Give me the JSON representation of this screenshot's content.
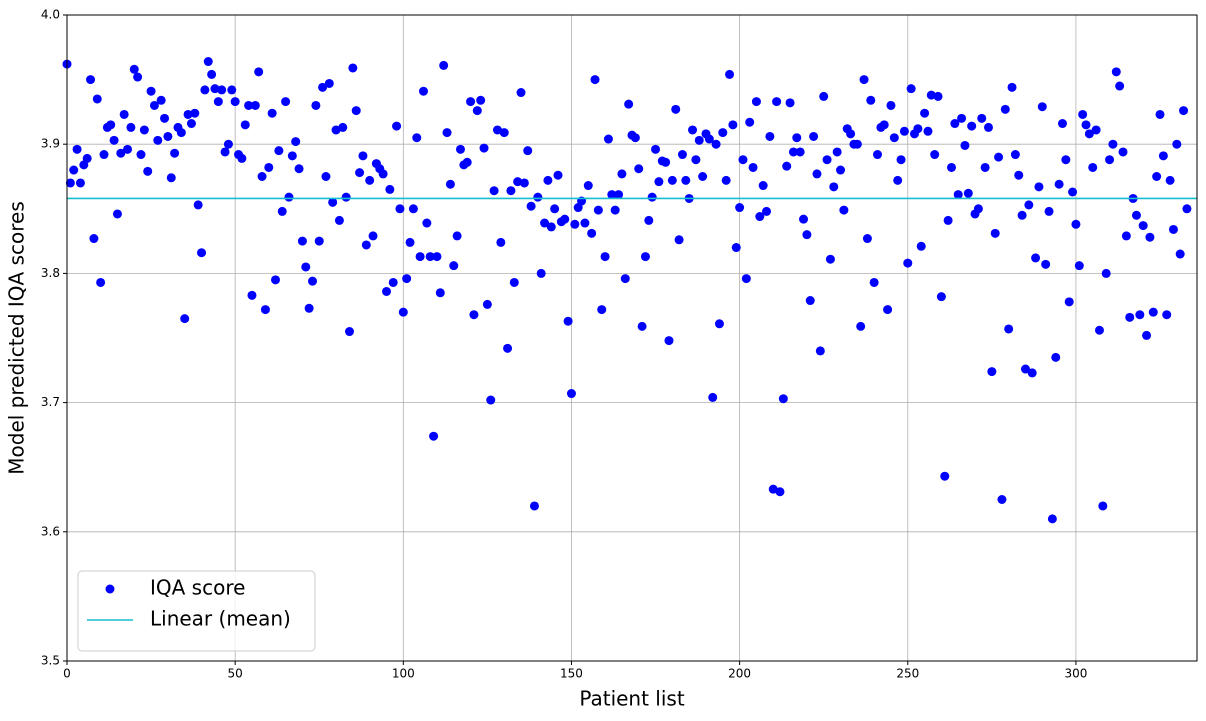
{
  "chart_data": {
    "type": "scatter",
    "xlabel": "Patient list",
    "ylabel": "Model predicted IQA scores",
    "xlim": [
      0,
      336
    ],
    "ylim": [
      3.5,
      4.0
    ],
    "xticks": [
      0,
      50,
      100,
      150,
      200,
      250,
      300
    ],
    "yticks": [
      3.5,
      3.6,
      3.7,
      3.8,
      3.9,
      {
        "value": 4,
        "label": "4.0"
      }
    ],
    "grid": true,
    "legend": "lower left",
    "series": [
      {
        "name": "IQA score",
        "color": "#0000ff",
        "type": "scatter",
        "x": [
          0,
          1,
          2,
          3,
          4,
          5,
          6,
          7,
          8,
          9,
          10,
          11,
          12,
          13,
          14,
          15,
          16,
          17,
          18,
          19,
          20,
          21,
          22,
          23,
          24,
          25,
          26,
          27,
          28,
          29,
          30,
          31,
          32,
          33,
          34,
          35,
          36,
          37,
          38,
          39,
          40,
          41,
          42,
          43,
          44,
          45,
          46,
          47,
          48,
          49,
          50,
          51,
          52,
          53,
          54,
          55,
          56,
          57,
          58,
          59,
          60,
          61,
          62,
          63,
          64,
          65,
          66,
          67,
          68,
          69,
          70,
          71,
          72,
          73,
          74,
          75,
          76,
          77,
          78,
          79,
          80,
          81,
          82,
          83,
          84,
          85,
          86,
          87,
          88,
          89,
          90,
          91,
          92,
          93,
          94,
          95,
          96,
          97,
          98,
          99,
          100,
          101,
          102,
          103,
          104,
          105,
          106,
          107,
          108,
          109,
          110,
          111,
          112,
          113,
          114,
          115,
          116,
          117,
          118,
          119,
          120,
          121,
          122,
          123,
          124,
          125,
          126,
          127,
          128,
          129,
          130,
          131,
          132,
          133,
          134,
          135,
          136,
          137,
          138,
          139,
          140,
          141,
          142,
          143,
          144,
          145,
          146,
          147,
          148,
          149,
          150,
          151,
          152,
          153,
          154,
          155,
          156,
          157,
          158,
          159,
          160,
          161,
          162,
          163,
          164,
          165,
          166,
          167,
          168,
          169,
          170,
          171,
          172,
          173,
          174,
          175,
          176,
          177,
          178,
          179,
          180,
          181,
          182,
          183,
          184,
          185,
          186,
          187,
          188,
          189,
          190,
          191,
          192,
          193,
          194,
          195,
          196,
          197,
          198,
          199,
          200,
          201,
          202,
          203,
          204,
          205,
          206,
          207,
          208,
          209,
          210,
          211,
          212,
          213,
          214,
          215,
          216,
          217,
          218,
          219,
          220,
          221,
          222,
          223,
          224,
          225,
          226,
          227,
          228,
          229,
          230,
          231,
          232,
          233,
          234,
          235,
          236,
          237,
          238,
          239,
          240,
          241,
          242,
          243,
          244,
          245,
          246,
          247,
          248,
          249,
          250,
          251,
          252,
          253,
          254,
          255,
          256,
          257,
          258,
          259,
          260,
          261,
          262,
          263,
          264,
          265,
          266,
          267,
          268,
          269,
          270,
          271,
          272,
          273,
          274,
          275,
          276,
          277,
          278,
          279,
          280,
          281,
          282,
          283,
          284,
          285,
          286,
          287,
          288,
          289,
          290,
          291,
          292,
          293,
          294,
          295,
          296,
          297,
          298,
          299,
          300,
          301,
          302,
          303,
          304,
          305,
          306,
          307,
          308,
          309,
          310,
          311,
          312,
          313,
          314,
          315,
          316,
          317,
          318,
          319,
          320,
          321,
          322,
          323,
          324,
          325,
          326,
          327,
          328,
          329,
          330,
          331,
          332,
          333
        ],
        "values": [
          3.962,
          3.87,
          3.88,
          3.896,
          3.87,
          3.884,
          3.889,
          3.95,
          3.827,
          3.935,
          3.793,
          3.892,
          3.913,
          3.915,
          3.903,
          3.846,
          3.893,
          3.923,
          3.896,
          3.913,
          3.958,
          3.952,
          3.892,
          3.911,
          3.879,
          3.941,
          3.93,
          3.903,
          3.934,
          3.92,
          3.906,
          3.874,
          3.893,
          3.913,
          3.909,
          3.765,
          3.923,
          3.916,
          3.924,
          3.853,
          3.816,
          3.942,
          3.964,
          3.954,
          3.943,
          3.933,
          3.942,
          3.894,
          3.9,
          3.942,
          3.933,
          3.892,
          3.889,
          3.915,
          3.93,
          3.783,
          3.93,
          3.956,
          3.875,
          3.772,
          3.882,
          3.924,
          3.795,
          3.895,
          3.848,
          3.933,
          3.859,
          3.891,
          3.902,
          3.881,
          3.825,
          3.805,
          3.773,
          3.794,
          3.93,
          3.825,
          3.944,
          3.875,
          3.947,
          3.855,
          3.911,
          3.841,
          3.913,
          3.859,
          3.755,
          3.959,
          3.926,
          3.878,
          3.891,
          3.822,
          3.872,
          3.829,
          3.885,
          3.881,
          3.877,
          3.786,
          3.865,
          3.793,
          3.914,
          3.85,
          3.77,
          3.796,
          3.824,
          3.85,
          3.905,
          3.813,
          3.941,
          3.839,
          3.813,
          3.674,
          3.813,
          3.785,
          3.961,
          3.909,
          3.869,
          3.806,
          3.829,
          3.896,
          3.884,
          3.886,
          3.933,
          3.768,
          3.926,
          3.934,
          3.897,
          3.776,
          3.702,
          3.864,
          3.911,
          3.824,
          3.909,
          3.742,
          3.864,
          3.793,
          3.871,
          3.94,
          3.87,
          3.895,
          3.852,
          3.62,
          3.859,
          3.8,
          3.839,
          3.872,
          3.836,
          3.85,
          3.876,
          3.84,
          3.842,
          3.763,
          3.707,
          3.838,
          3.851,
          3.856,
          3.839,
          3.868,
          3.831,
          3.95,
          3.849,
          3.772,
          3.813,
          3.904,
          3.861,
          3.849,
          3.861,
          3.877,
          3.796,
          3.931,
          3.907,
          3.905,
          3.881,
          3.759,
          3.813,
          3.841,
          3.859,
          3.896,
          3.871,
          3.887,
          3.886,
          3.748,
          3.872,
          3.927,
          3.826,
          3.892,
          3.872,
          3.858,
          3.911,
          3.888,
          3.903,
          3.875,
          3.908,
          3.904,
          3.704,
          3.9,
          3.761,
          3.909,
          3.872,
          3.954,
          3.915,
          3.82,
          3.851,
          3.888,
          3.796,
          3.917,
          3.882,
          3.933,
          3.844,
          3.868,
          3.848,
          3.906,
          3.633,
          3.933,
          3.631,
          3.703,
          3.883,
          3.932,
          3.894,
          3.905,
          3.894,
          3.842,
          3.83,
          3.779,
          3.906,
          3.877,
          3.74,
          3.937,
          3.888,
          3.811,
          3.867,
          3.894,
          3.88,
          3.849,
          3.912,
          3.908,
          3.9,
          3.9,
          3.759,
          3.95,
          3.827,
          3.934,
          3.793,
          3.892,
          3.913,
          3.915,
          3.772,
          3.93,
          3.905,
          3.872,
          3.888,
          3.91,
          3.808,
          3.943,
          3.908,
          3.912,
          3.821,
          3.924,
          3.91,
          3.938,
          3.892,
          3.937,
          3.782,
          3.643,
          3.841,
          3.882,
          3.916,
          3.861,
          3.92,
          3.899,
          3.862,
          3.914,
          3.846,
          3.85,
          3.92,
          3.882,
          3.913,
          3.724,
          3.831,
          3.89,
          3.625,
          3.927,
          3.757,
          3.944,
          3.892,
          3.876,
          3.845,
          3.726,
          3.853,
          3.723,
          3.812,
          3.867,
          3.929,
          3.807,
          3.848,
          3.61,
          3.735,
          3.869,
          3.916,
          3.888,
          3.778,
          3.863,
          3.838,
          3.806,
          3.923,
          3.915,
          3.908,
          3.882,
          3.911,
          3.756,
          3.62,
          3.8,
          3.888,
          3.9,
          3.956,
          3.945,
          3.894,
          3.829,
          3.766,
          3.858,
          3.845,
          3.768,
          3.837,
          3.752,
          3.828,
          3.77,
          3.875,
          3.923,
          3.891,
          3.768,
          3.872,
          3.834,
          3.9,
          3.815,
          3.926,
          3.85
        ]
      },
      {
        "name": "Linear (mean)",
        "color": "#17becf",
        "type": "line",
        "x": [
          0,
          336
        ],
        "values": [
          3.858,
          3.858
        ]
      }
    ]
  }
}
